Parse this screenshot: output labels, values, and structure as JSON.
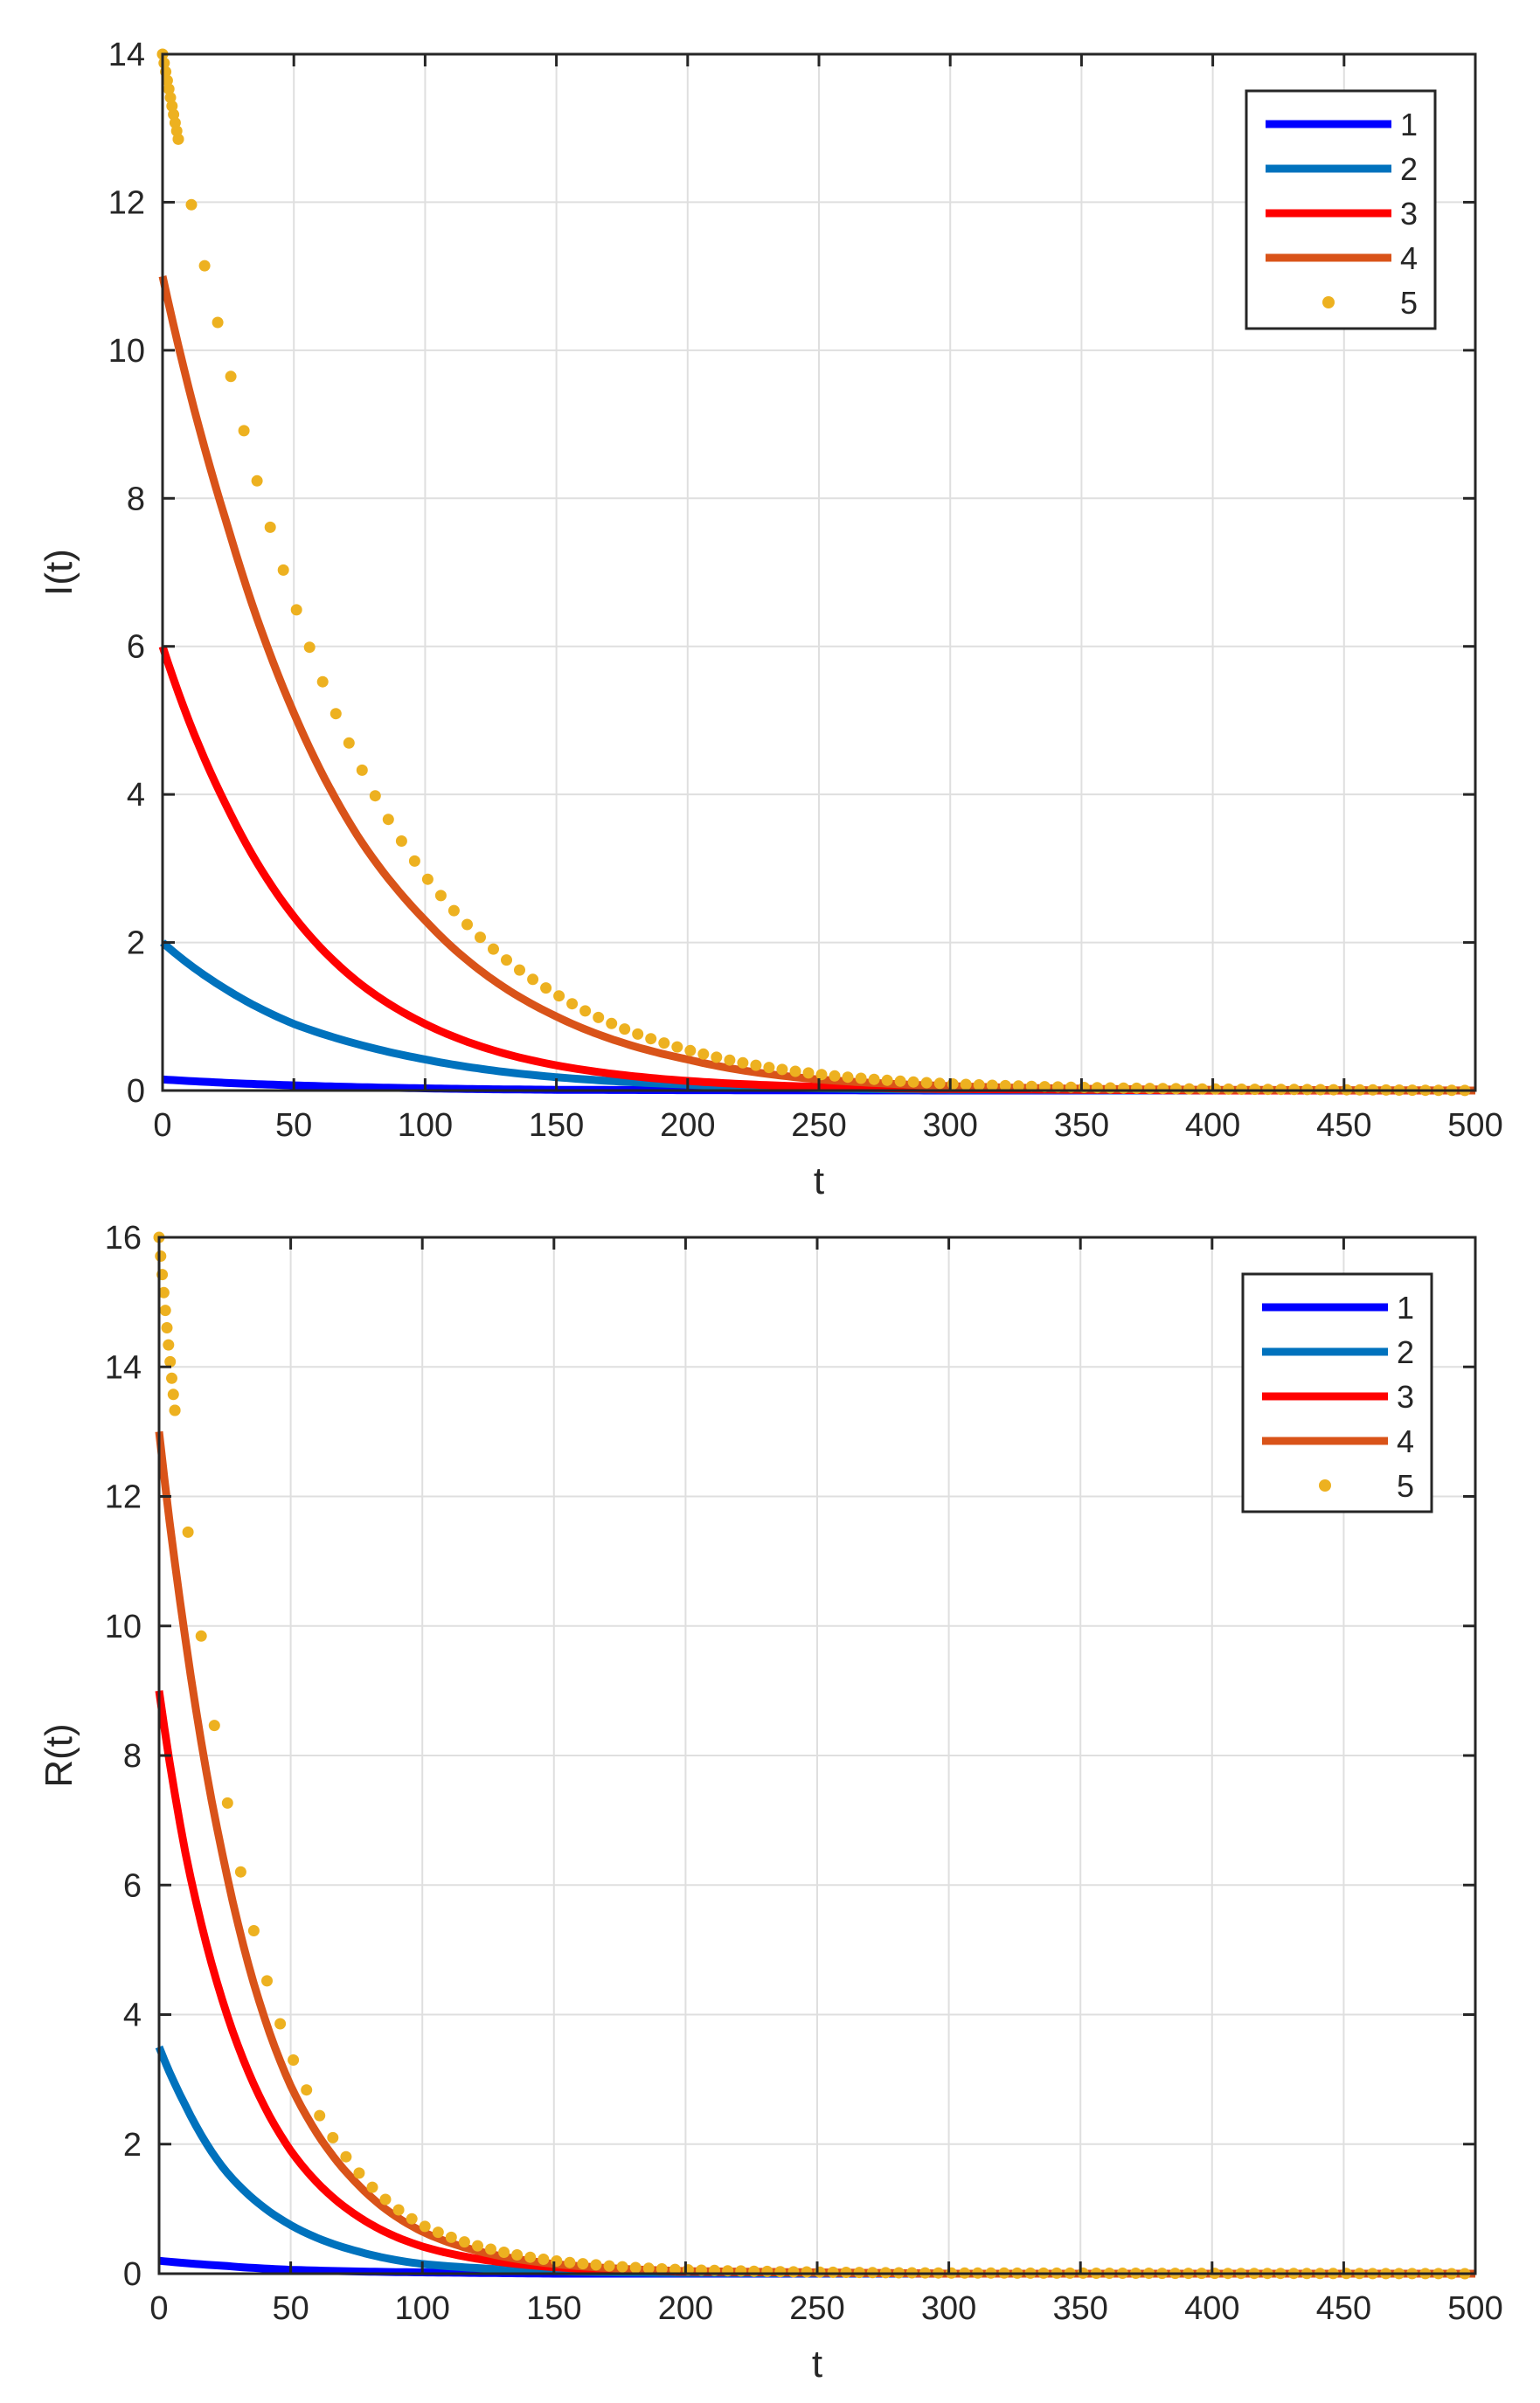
{
  "chart_data": [
    {
      "type": "line",
      "xlabel": "t",
      "ylabel": "I(t)",
      "xlim": [
        0,
        500
      ],
      "ylim": [
        0,
        14
      ],
      "xticks": [
        "0",
        "50",
        "100",
        "150",
        "200",
        "250",
        "300",
        "350",
        "400",
        "450",
        "500"
      ],
      "yticks": [
        "0",
        "2",
        "4",
        "6",
        "8",
        "10",
        "12",
        "14"
      ],
      "grid": true,
      "legend_position": "top-right",
      "series": [
        {
          "name": "1",
          "color": "#0000ff",
          "style": "line",
          "x": [
            0,
            50,
            100,
            150,
            200,
            300,
            500
          ],
          "y": [
            0.15,
            0.07,
            0.03,
            0.01,
            0.005,
            0.0,
            0.0
          ]
        },
        {
          "name": "2",
          "color": "#0072bd",
          "style": "line",
          "x": [
            0,
            25,
            50,
            75,
            100,
            150,
            200,
            250,
            300,
            400,
            500
          ],
          "y": [
            2.0,
            1.35,
            0.9,
            0.62,
            0.42,
            0.18,
            0.08,
            0.03,
            0.01,
            0.0,
            0.0
          ]
        },
        {
          "name": "3",
          "color": "#ff0000",
          "style": "line",
          "x": [
            0,
            25,
            50,
            75,
            100,
            150,
            200,
            250,
            300,
            400,
            500
          ],
          "y": [
            6.0,
            3.8,
            2.35,
            1.45,
            0.9,
            0.34,
            0.13,
            0.05,
            0.02,
            0.0,
            0.0
          ]
        },
        {
          "name": "4",
          "color": "#d95319",
          "style": "line",
          "x": [
            0,
            25,
            50,
            75,
            100,
            150,
            200,
            250,
            300,
            400,
            500
          ],
          "y": [
            11.0,
            7.6,
            5.1,
            3.4,
            2.3,
            1.0,
            0.42,
            0.15,
            0.06,
            0.01,
            0.0
          ]
        },
        {
          "name": "5",
          "color": "#edb120",
          "style": "dots",
          "x": [
            0,
            25,
            50,
            75,
            100,
            150,
            200,
            250,
            300,
            400,
            500
          ],
          "y": [
            14.0,
            9.8,
            6.6,
            4.4,
            2.9,
            1.3,
            0.55,
            0.22,
            0.09,
            0.02,
            0.0
          ]
        }
      ]
    },
    {
      "type": "line",
      "xlabel": "t",
      "ylabel": "R(t)",
      "xlim": [
        0,
        500
      ],
      "ylim": [
        0,
        16
      ],
      "xticks": [
        "0",
        "50",
        "100",
        "150",
        "200",
        "250",
        "300",
        "350",
        "400",
        "450",
        "500"
      ],
      "yticks": [
        "0",
        "2",
        "4",
        "6",
        "8",
        "10",
        "12",
        "14",
        "16"
      ],
      "grid": true,
      "legend_position": "top-right",
      "series": [
        {
          "name": "1",
          "color": "#0000ff",
          "style": "line",
          "x": [
            0,
            25,
            50,
            100,
            150,
            500
          ],
          "y": [
            0.2,
            0.12,
            0.06,
            0.02,
            0.0,
            0.0
          ]
        },
        {
          "name": "2",
          "color": "#0072bd",
          "style": "line",
          "x": [
            0,
            10,
            25,
            50,
            75,
            100,
            150,
            200,
            300,
            500
          ],
          "y": [
            3.5,
            2.6,
            1.6,
            0.75,
            0.35,
            0.15,
            0.04,
            0.01,
            0.0,
            0.0
          ]
        },
        {
          "name": "3",
          "color": "#ff0000",
          "style": "line",
          "x": [
            0,
            10,
            25,
            50,
            75,
            100,
            150,
            200,
            300,
            500
          ],
          "y": [
            9.0,
            6.5,
            4.1,
            1.9,
            0.9,
            0.42,
            0.1,
            0.03,
            0.0,
            0.0
          ]
        },
        {
          "name": "4",
          "color": "#d95319",
          "style": "line",
          "x": [
            0,
            10,
            25,
            50,
            75,
            100,
            150,
            200,
            300,
            500
          ],
          "y": [
            13.0,
            9.8,
            6.3,
            2.9,
            1.4,
            0.65,
            0.15,
            0.04,
            0.0,
            0.0
          ]
        },
        {
          "name": "5",
          "color": "#edb120",
          "style": "dots",
          "x": [
            0,
            10,
            25,
            50,
            75,
            100,
            150,
            200,
            300,
            500
          ],
          "y": [
            16.0,
            11.8,
            7.5,
            3.4,
            1.6,
            0.75,
            0.2,
            0.06,
            0.01,
            0.0
          ]
        }
      ]
    }
  ]
}
